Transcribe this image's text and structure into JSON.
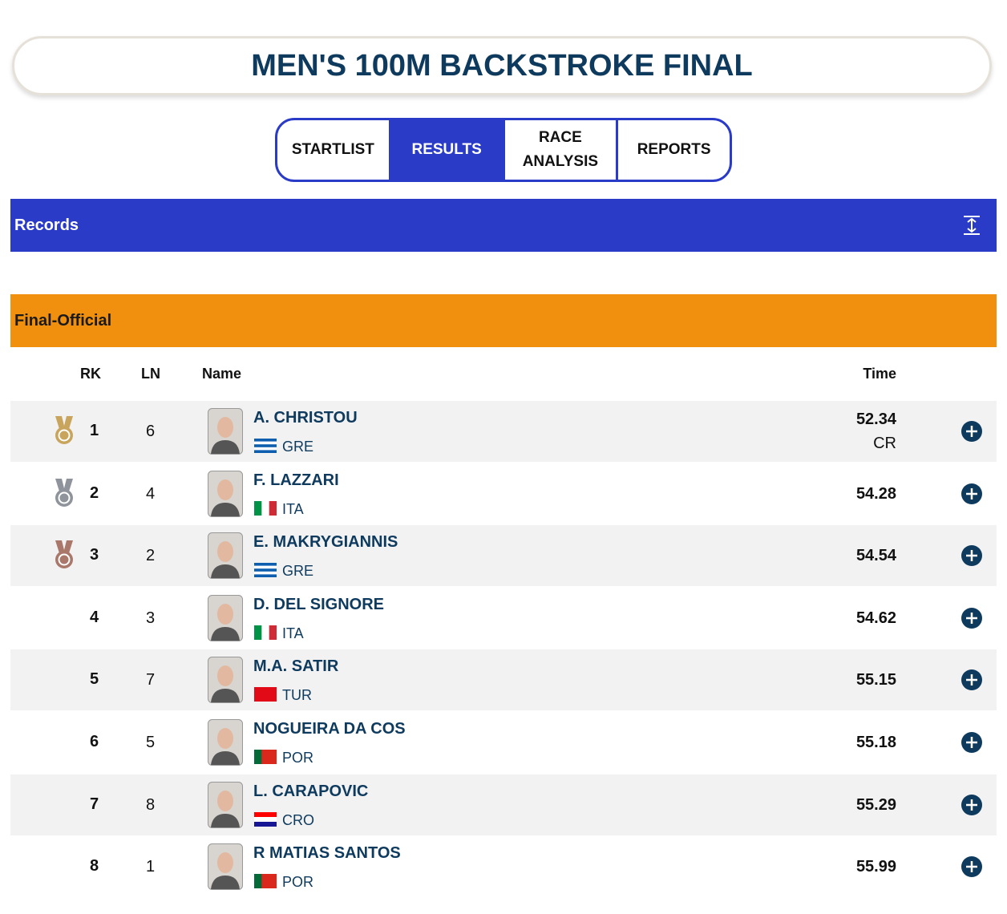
{
  "header": {
    "title": "MEN'S 100M BACKSTROKE FINAL"
  },
  "tabs": [
    "STARTLIST",
    "RESULTS",
    "RACE ANALYSIS",
    "REPORTS"
  ],
  "active_tab": 1,
  "records": {
    "label": "Records"
  },
  "section": {
    "phase": "Final",
    "separator": "-",
    "status": "Official"
  },
  "table": {
    "columns": [
      "RK",
      "LN",
      "Name",
      "Time"
    ],
    "rows": [
      {
        "rank": 1,
        "lane": 6,
        "name": "A. CHRISTOU",
        "country": "GRE",
        "time": 52.34,
        "note": "CR",
        "medal": "#c9a45c",
        "flag_direction": "horizontal",
        "flag_colors": [
          "#0d5eaf",
          "#ffffff",
          "#0d5eaf",
          "#ffffff",
          "#0d5eaf"
        ]
      },
      {
        "rank": 2,
        "lane": 4,
        "name": "F. LAZZARI",
        "country": "ITA",
        "time": 54.28,
        "medal": "#8f949c",
        "flag_direction": "vertical",
        "flag_colors": [
          "#009246",
          "#ffffff",
          "#ce2b37"
        ]
      },
      {
        "rank": 3,
        "lane": 2,
        "name": "E. MAKRYGIANNIS",
        "country": "GRE",
        "time": 54.54,
        "medal": "#a9786a",
        "flag_direction": "horizontal",
        "flag_colors": [
          "#0d5eaf",
          "#ffffff",
          "#0d5eaf",
          "#ffffff",
          "#0d5eaf"
        ]
      },
      {
        "rank": 4,
        "lane": 3,
        "name": "D. DEL SIGNORE",
        "country": "ITA",
        "time": 54.62,
        "flag_direction": "vertical",
        "flag_colors": [
          "#009246",
          "#ffffff",
          "#ce2b37"
        ]
      },
      {
        "rank": 5,
        "lane": 7,
        "name": "M.A. SATIR",
        "country": "TUR",
        "time": 55.15,
        "flag_direction": "vertical",
        "flag_colors": [
          "#e30a17"
        ]
      },
      {
        "rank": 6,
        "lane": 5,
        "name": "NOGUEIRA DA COS",
        "country": "POR",
        "time": 55.18,
        "flag_direction": "vertical",
        "flag_colors": [
          "#046a38",
          "#da291c",
          "#da291c"
        ]
      },
      {
        "rank": 7,
        "lane": 8,
        "name": "L. CARAPOVIC",
        "country": "CRO",
        "time": 55.29,
        "flag_direction": "horizontal",
        "flag_colors": [
          "#ff0000",
          "#ffffff",
          "#171796"
        ]
      },
      {
        "rank": 8,
        "lane": 1,
        "name": "R MATIAS SANTOS",
        "country": "POR",
        "time": 55.99,
        "flag_direction": "vertical",
        "flag_colors": [
          "#046a38",
          "#da291c",
          "#da291c"
        ]
      }
    ]
  }
}
